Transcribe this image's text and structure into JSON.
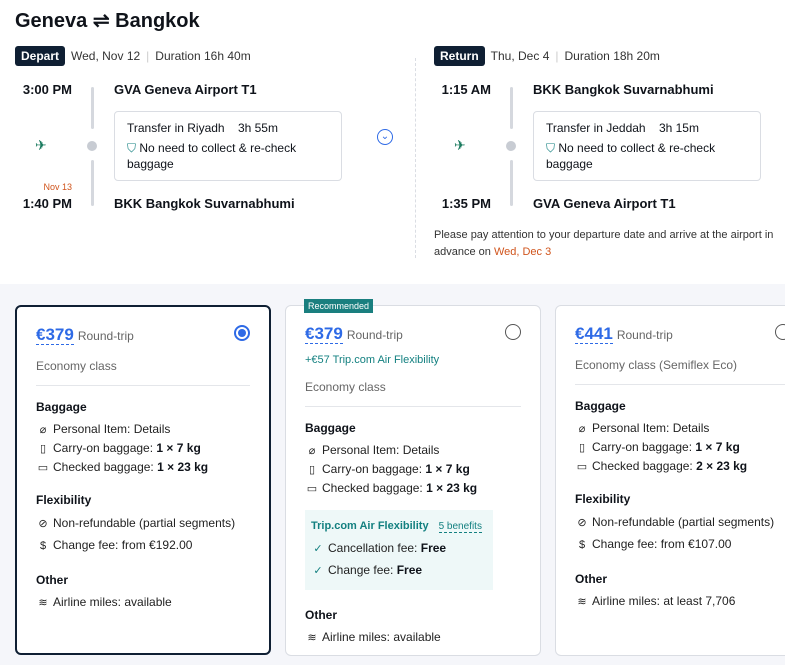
{
  "title": {
    "from": "Geneva",
    "arrow": "⇌",
    "to": "Bangkok"
  },
  "depart": {
    "badge": "Depart",
    "date": "Wed, Nov 12",
    "duration": "Duration 16h 40m",
    "dep_time": "3:00 PM",
    "dep_airport": "GVA Geneva Airport T1",
    "transfer": "Transfer in Riyadh",
    "transfer_time": "3h 55m",
    "recheck": "No need to collect & re-check baggage",
    "arr_date_note": "Nov 13",
    "arr_time": "1:40 PM",
    "arr_airport": "BKK Bangkok Suvarnabhumi"
  },
  "return": {
    "badge": "Return",
    "date": "Thu, Dec 4",
    "duration": "Duration 18h 20m",
    "dep_time": "1:15 AM",
    "dep_airport": "BKK Bangkok Suvarnabhumi",
    "transfer": "Transfer in Jeddah",
    "transfer_time": "3h 15m",
    "recheck": "No need to collect & re-check baggage",
    "arr_time": "1:35 PM",
    "arr_airport": "GVA Geneva Airport T1",
    "notice": "Please pay attention to your departure date and arrive at the airport in advance on",
    "notice_date": "Wed, Dec 3"
  },
  "colors": {
    "accent": "#2e6ae6",
    "teal": "#138080",
    "warn": "#d0541c",
    "dark": "#0f1f33"
  },
  "fares": [
    {
      "price": "€379",
      "trip": "Round-trip",
      "selected": true,
      "cls": "Economy class",
      "baggage_label": "Baggage",
      "personal": "Personal Item: Details",
      "carry_label": "Carry-on baggage: ",
      "carry": "1 × 7 kg",
      "checked_label": "Checked baggage: ",
      "checked": "1 × 23 kg",
      "flex_label": "Flexibility",
      "refund": "Non-refundable (partial segments)",
      "change": "Change fee: from €192.00",
      "other_label": "Other",
      "miles": "Airline miles: available"
    },
    {
      "tag": "Recommended",
      "price": "€379",
      "trip": "Round-trip",
      "selected": false,
      "addon": "+€57 Trip.com Air Flexibility",
      "cls": "Economy class",
      "baggage_label": "Baggage",
      "personal": "Personal Item: Details",
      "carry_label": "Carry-on baggage: ",
      "carry": "1 × 7 kg",
      "checked_label": "Checked baggage: ",
      "checked": "1 × 23 kg",
      "flex_title": "Trip.com Air Flexibility",
      "benefits": "5 benefits",
      "cancel_label": "Cancellation fee: ",
      "cancel": "Free",
      "change_label": "Change fee: ",
      "change": "Free",
      "other_label": "Other",
      "miles": "Airline miles: available"
    },
    {
      "price": "€441",
      "trip": "Round-trip",
      "selected": false,
      "cls": "Economy class (Semiflex Eco)",
      "baggage_label": "Baggage",
      "personal": "Personal Item: Details",
      "carry_label": "Carry-on baggage: ",
      "carry": "1 × 7 kg",
      "checked_label": "Checked baggage: ",
      "checked": "2 × 23 kg",
      "flex_label": "Flexibility",
      "refund": "Non-refundable (partial segments)",
      "change": "Change fee: from €107.00",
      "other_label": "Other",
      "miles": "Airline miles: at least 7,706"
    }
  ]
}
